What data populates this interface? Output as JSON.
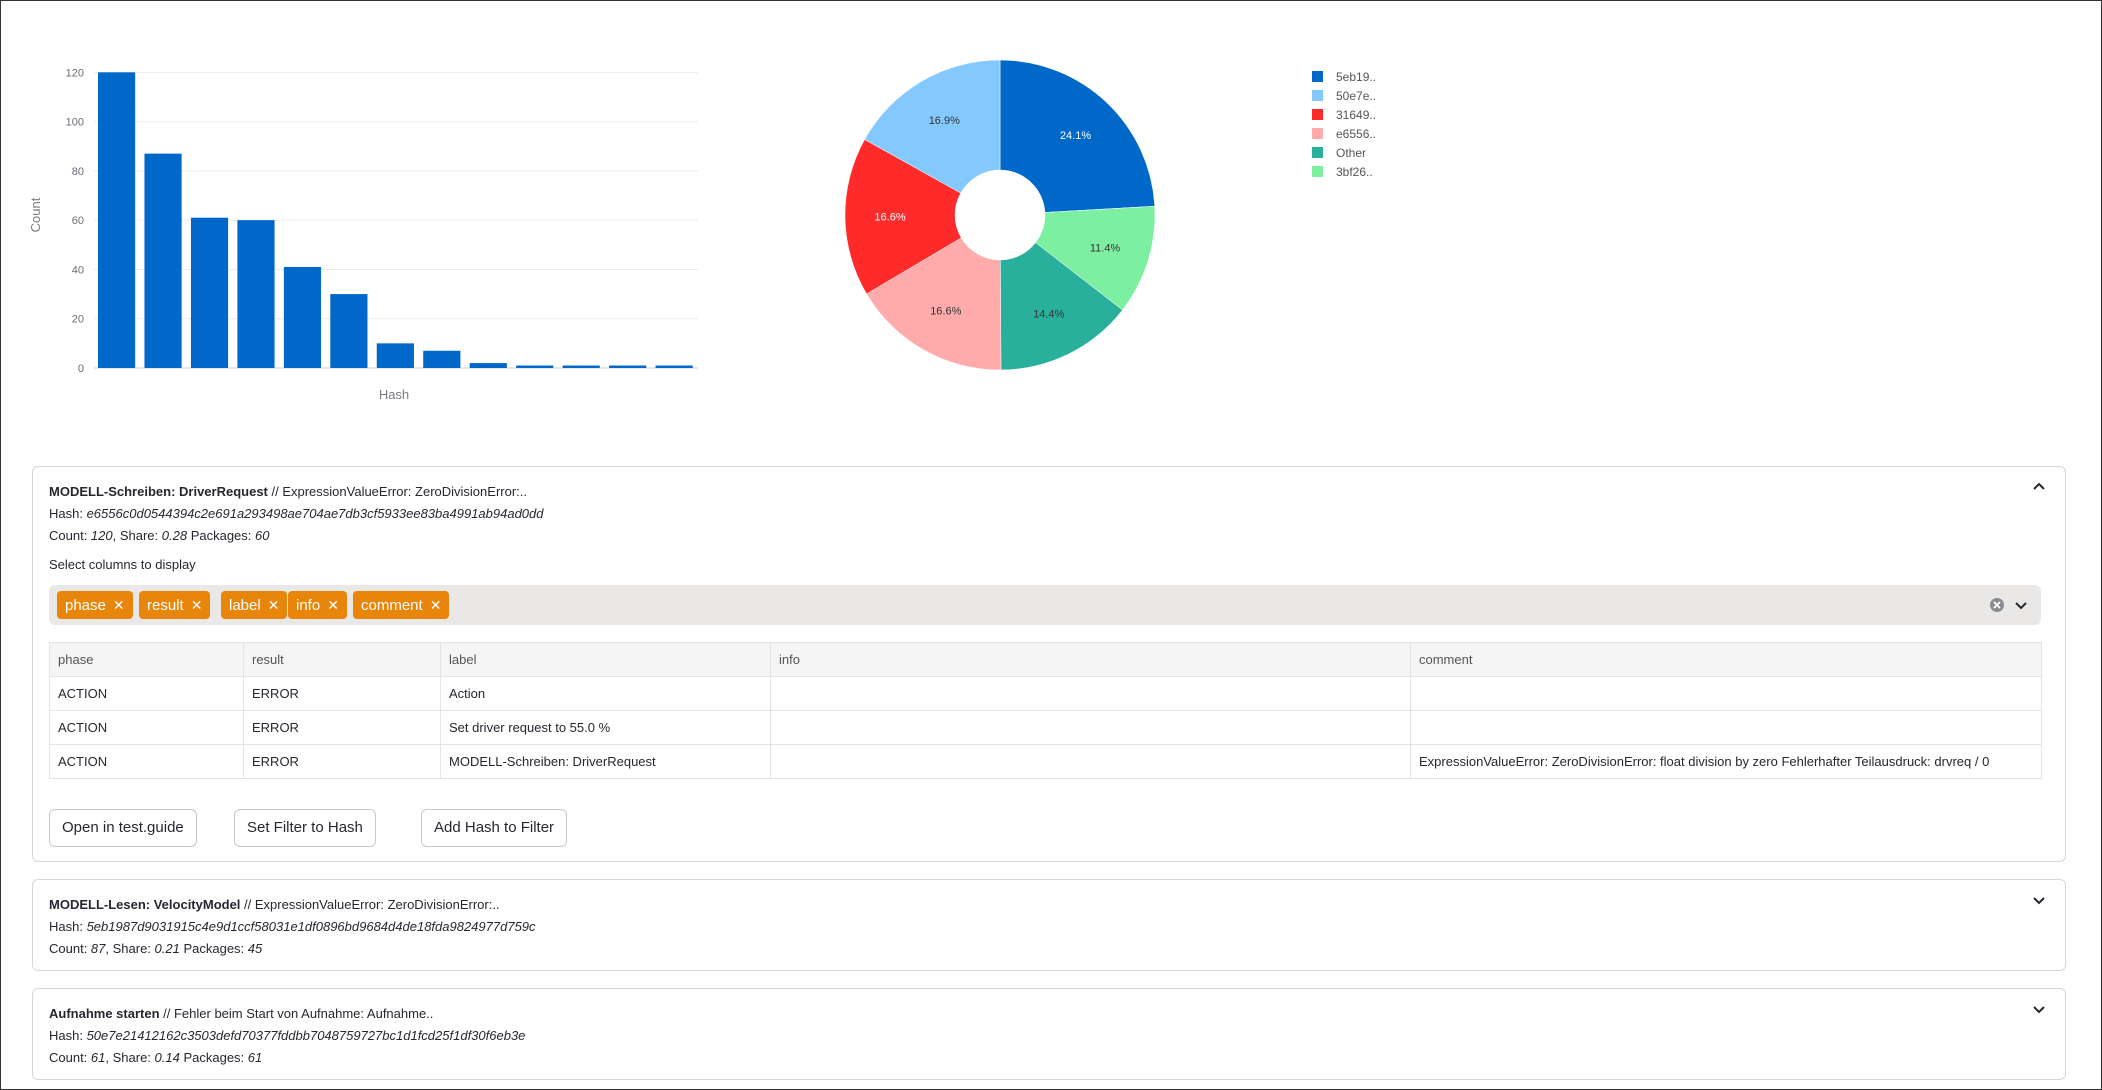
{
  "bar_chart": {
    "type": "bar",
    "xlabel": "Hash",
    "ylabel": "Count",
    "ylim": [
      0,
      125
    ],
    "yticks": [
      0,
      20,
      40,
      60,
      80,
      100,
      120
    ],
    "values": [
      120,
      87,
      61,
      60,
      41,
      30,
      10,
      7,
      2,
      1,
      1,
      1,
      1
    ],
    "color": "#0068c9",
    "grid": true
  },
  "chart_data": {
    "type": "pie",
    "donut": true,
    "labels": [
      "5eb19..",
      "50e7e..",
      "31649..",
      "e6556..",
      "Other",
      "3bf26.."
    ],
    "values": [
      24.1,
      16.9,
      16.6,
      16.6,
      14.4,
      11.4
    ],
    "value_labels": [
      "24.1%",
      "16.9%",
      "16.6%",
      "16.6%",
      "14.4%",
      "11.4%"
    ],
    "colors": [
      "#0068c9",
      "#83c9ff",
      "#ff2b2b",
      "#ffabab",
      "#29b09d",
      "#7defa1"
    ],
    "slice_order": [
      0,
      5,
      4,
      3,
      2,
      1
    ],
    "legend": "right"
  },
  "expanders": [
    {
      "title_bold": "MODELL-Schreiben: DriverRequest",
      "title_rest": " // ExpressionValueError: ZeroDivisionError:..",
      "hash_label": "Hash: ",
      "hash": "e6556c0d0544394c2e691a293498ae704ae7db3cf5933ee83ba4991ab94ad0dd",
      "count_label": "Count: ",
      "count": "120",
      "share_label": ", Share: ",
      "share": "0.28",
      "packages_label": " Packages: ",
      "packages": "60",
      "select_label": "Select columns to display",
      "tags": [
        "phase",
        "result",
        "label",
        "info",
        "comment"
      ],
      "columns": [
        "phase",
        "result",
        "label",
        "info",
        "comment"
      ],
      "rows": [
        [
          "ACTION",
          "ERROR",
          "Action",
          "",
          ""
        ],
        [
          "ACTION",
          "ERROR",
          "Set driver request to 55.0 %",
          "",
          ""
        ],
        [
          "ACTION",
          "ERROR",
          "MODELL-Schreiben: DriverRequest",
          "",
          "ExpressionValueError: ZeroDivisionError: float division by zero Fehlerhafter Teilausdruck: drvreq / 0"
        ]
      ],
      "buttons": [
        "Open in test.guide",
        "Set Filter to Hash",
        "Add Hash to Filter"
      ]
    },
    {
      "title_bold": "MODELL-Lesen: VelocityModel",
      "title_rest": " // ExpressionValueError: ZeroDivisionError:..",
      "hash_label": "Hash: ",
      "hash": "5eb1987d9031915c4e9d1ccf58031e1df0896bd9684d4de18fda9824977d759c",
      "count_label": "Count: ",
      "count": "87",
      "share_label": ", Share: ",
      "share": "0.21",
      "packages_label": " Packages: ",
      "packages": "45"
    },
    {
      "title_bold": "Aufnahme starten",
      "title_rest": " // Fehler beim Start von Aufnahme: Aufnahme..",
      "hash_label": "Hash: ",
      "hash": "50e7e21412162c3503defd70377fddbb7048759727bc1d1fcd25f1df30f6eb3e",
      "count_label": "Count: ",
      "count": "61",
      "share_label": ", Share: ",
      "share": "0.14",
      "packages_label": " Packages: ",
      "packages": "61"
    }
  ]
}
